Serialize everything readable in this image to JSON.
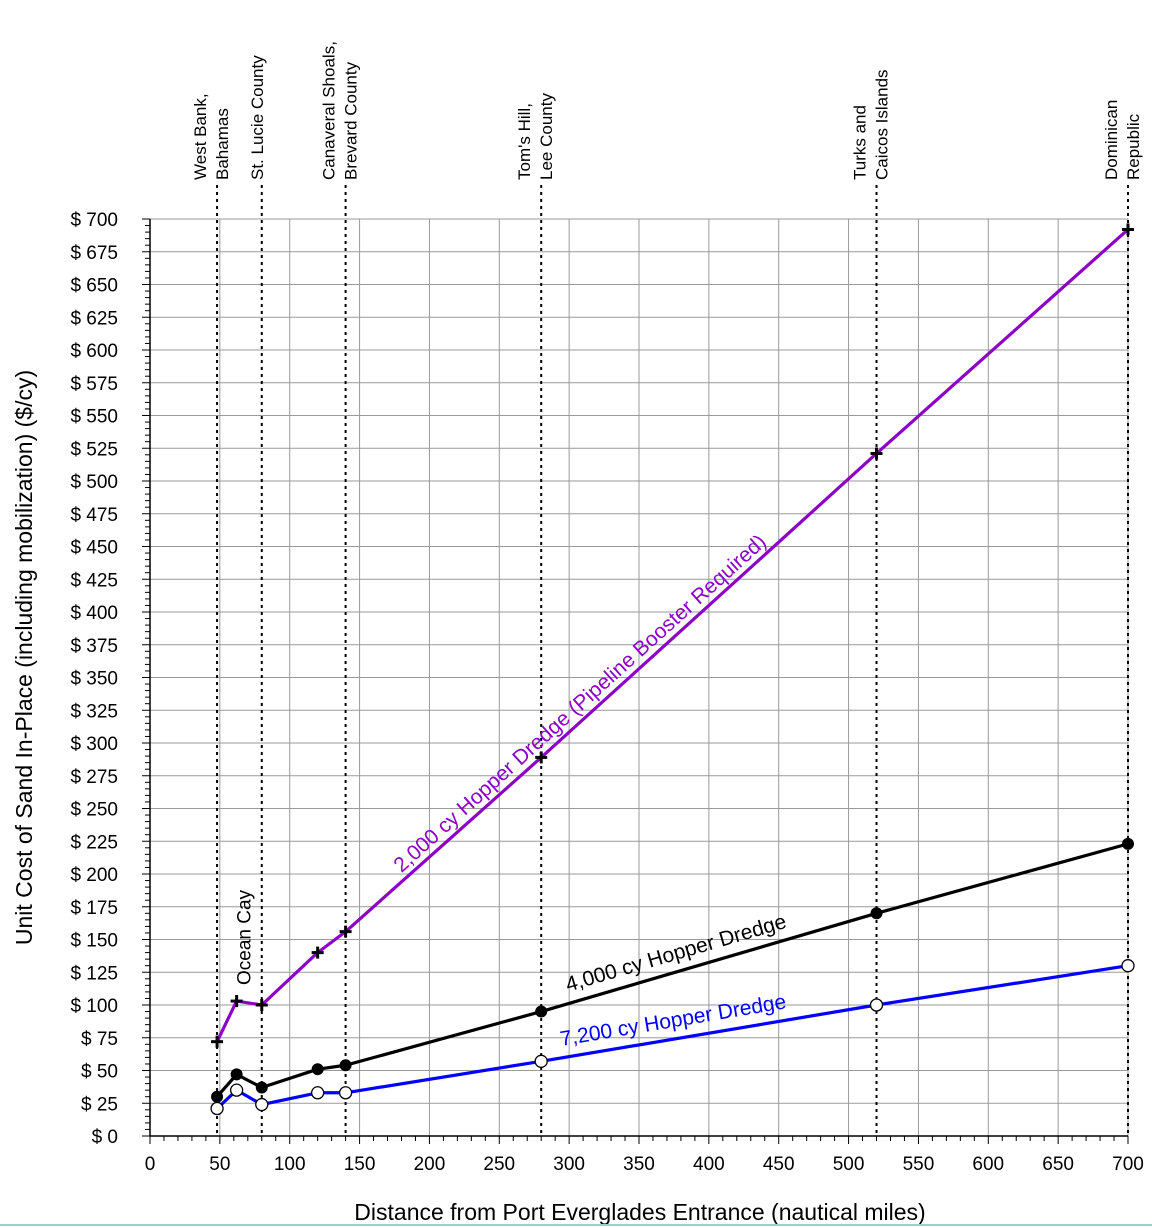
{
  "chart_data": {
    "type": "line",
    "xlabel": "Distance from Port Everglades Entrance (nautical miles)",
    "ylabel": "Unit Cost of Sand In-Place (including mobilization) ($/cy)",
    "xlim": [
      0,
      700
    ],
    "ylim": [
      0,
      700
    ],
    "x_ticks": [
      "0",
      "50",
      "100",
      "150",
      "200",
      "250",
      "300",
      "350",
      "400",
      "450",
      "500",
      "550",
      "600",
      "650",
      "700"
    ],
    "y_ticks": [
      "$ 0",
      "$ 25",
      "$ 50",
      "$ 75",
      "$ 100",
      "$ 125",
      "$ 150",
      "$ 175",
      "$ 200",
      "$ 225",
      "$ 250",
      "$ 275",
      "$ 300",
      "$ 325",
      "$ 350",
      "$ 375",
      "$ 400",
      "$ 425",
      "$ 450",
      "$ 475",
      "$ 500",
      "$ 525",
      "$ 550",
      "$ 575",
      "$ 600",
      "$ 625",
      "$ 650",
      "$ 675",
      "$ 700"
    ],
    "grid": true,
    "locations": [
      {
        "x": 48,
        "lines": [
          "West Bank,",
          "Bahamas"
        ]
      },
      {
        "x": 80,
        "lines": [
          "St. Lucie County"
        ]
      },
      {
        "x": 140,
        "lines": [
          "Canaveral Shoals,",
          "Brevard County"
        ]
      },
      {
        "x": 280,
        "lines": [
          "Tom's Hill,",
          "Lee County"
        ]
      },
      {
        "x": 520,
        "lines": [
          "Turks and",
          "Caicos Islands"
        ]
      },
      {
        "x": 700,
        "lines": [
          "Dominican",
          "Republic"
        ]
      }
    ],
    "annotations": [
      {
        "text": "Ocean Cay",
        "x": 62
      }
    ],
    "series": [
      {
        "name": "2,000 cy Hopper Dredge (Pipeline Booster Required)",
        "color": "#8c00c8",
        "marker": "plus",
        "x": [
          48,
          62,
          80,
          120,
          140,
          280,
          520,
          700
        ],
        "values": [
          72,
          103,
          100,
          140,
          156,
          289,
          521,
          692
        ]
      },
      {
        "name": "4,000 cy Hopper Dredge",
        "color": "#000000",
        "marker": "filled-circle",
        "x": [
          48,
          62,
          80,
          120,
          140,
          280,
          520,
          700
        ],
        "values": [
          30,
          47,
          37,
          51,
          54,
          95,
          170,
          223
        ]
      },
      {
        "name": "7,200 cy Hopper Dredge",
        "color": "#0000ff",
        "marker": "open-circle",
        "x": [
          48,
          62,
          80,
          120,
          140,
          280,
          520,
          700
        ],
        "values": [
          21,
          35,
          24,
          33,
          33,
          57,
          100,
          130
        ]
      }
    ]
  }
}
